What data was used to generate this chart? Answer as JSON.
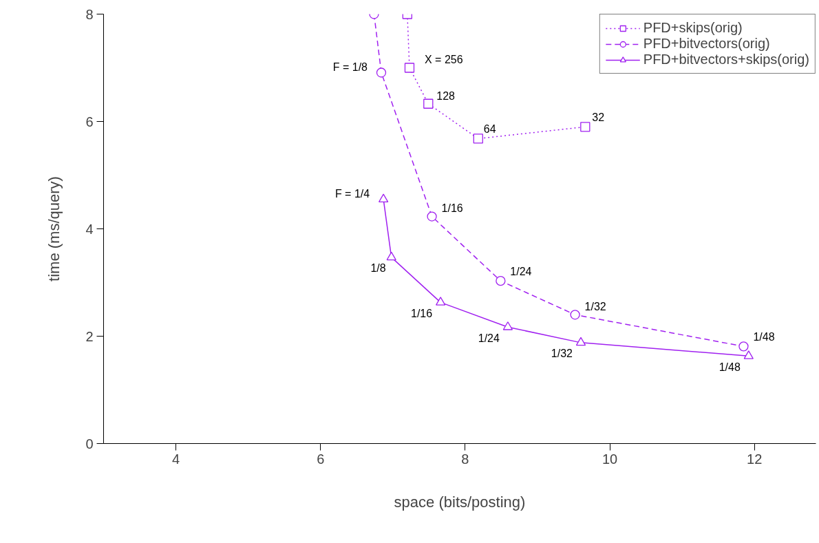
{
  "chart_data": {
    "type": "line",
    "xlabel": "space (bits/posting)",
    "ylabel": "time (ms/query)",
    "xlim": [
      3,
      12.85
    ],
    "ylim": [
      0,
      8
    ],
    "xticks": [
      4,
      6,
      8,
      10,
      12
    ],
    "yticks": [
      0,
      2,
      4,
      6,
      8
    ],
    "grid": false,
    "legend": "top right",
    "series": [
      {
        "name": "PFD+skips(orig)",
        "color": "#a020f0",
        "marker": "square",
        "line_style": "dotted",
        "x": [
          7.2,
          7.23,
          7.49,
          8.18,
          9.66
        ],
        "values": [
          8,
          7.0,
          6.33,
          5.68,
          5.9
        ]
      },
      {
        "name": "PFD+bitvectors(orig)",
        "color": "#a020f0",
        "marker": "circle",
        "line_style": "dashed",
        "x": [
          6.74,
          6.84,
          7.54,
          8.49,
          9.52,
          11.85
        ],
        "values": [
          8,
          6.91,
          4.23,
          3.03,
          2.4,
          1.81
        ]
      },
      {
        "name": "PFD+bitvectors+skips(orig)",
        "color": "#a020f0",
        "marker": "triangle",
        "line_style": "solid",
        "x": [
          6.87,
          6.98,
          7.66,
          8.59,
          9.6,
          11.92
        ],
        "values": [
          4.55,
          3.47,
          2.63,
          2.17,
          1.88,
          1.63
        ]
      }
    ],
    "annotations": [
      {
        "text": "X = 256",
        "x": 7.23,
        "y": 7.0
      },
      {
        "text": "128",
        "x": 7.49,
        "y": 6.33
      },
      {
        "text": "64",
        "x": 8.18,
        "y": 5.68
      },
      {
        "text": "32",
        "x": 9.66,
        "y": 5.9
      },
      {
        "text": "F = 1/8",
        "x": 6.84,
        "y": 6.91
      },
      {
        "text": "1/16",
        "x": 7.54,
        "y": 4.23
      },
      {
        "text": "1/24",
        "x": 8.49,
        "y": 3.03
      },
      {
        "text": "1/32",
        "x": 9.52,
        "y": 2.4
      },
      {
        "text": "1/48",
        "x": 11.85,
        "y": 1.81
      },
      {
        "text": "F = 1/4",
        "x": 6.87,
        "y": 4.55
      },
      {
        "text": "1/8",
        "x": 6.98,
        "y": 3.47
      },
      {
        "text": "1/16",
        "x": 7.66,
        "y": 2.63
      },
      {
        "text": "1/24",
        "x": 8.59,
        "y": 2.17
      },
      {
        "text": "1/32",
        "x": 9.6,
        "y": 1.88
      },
      {
        "text": "1/48",
        "x": 11.92,
        "y": 1.63
      }
    ]
  }
}
